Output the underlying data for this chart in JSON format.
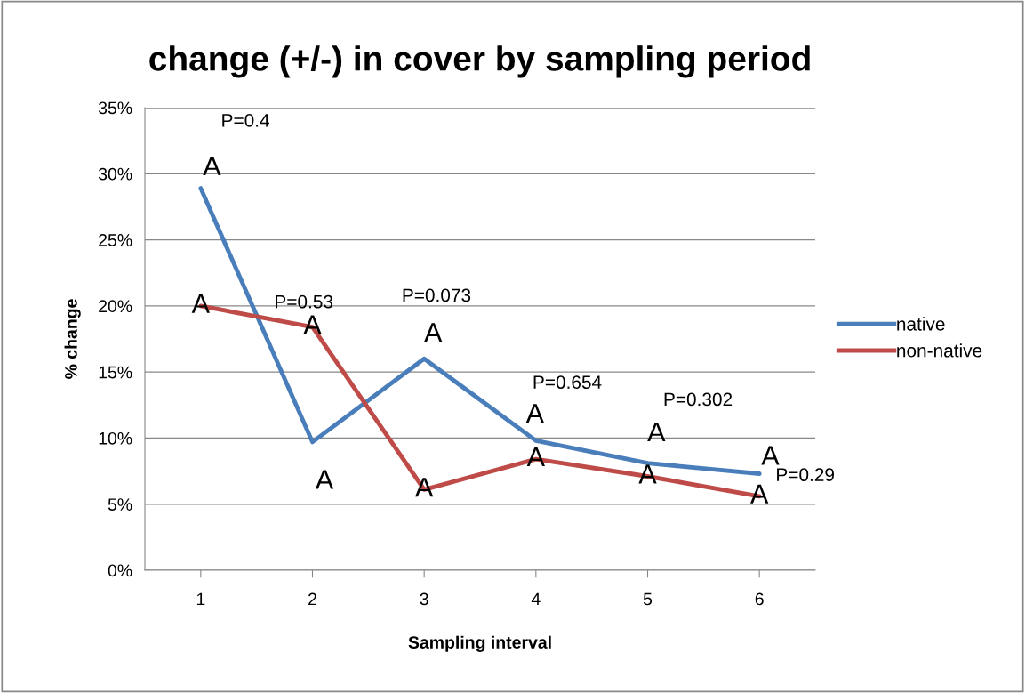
{
  "chart_data": {
    "type": "line",
    "title": "change (+/-) in cover by sampling period",
    "xlabel": "Sampling interval",
    "ylabel": "% change",
    "x": [
      1,
      2,
      3,
      4,
      5,
      6
    ],
    "xlim": [
      0.5,
      6.5
    ],
    "xticks": [
      1,
      2,
      3,
      4,
      5,
      6
    ],
    "ylim": [
      0,
      35
    ],
    "yticks": [
      {
        "value": 0,
        "label": "0%"
      },
      {
        "value": 5,
        "label": "5%"
      },
      {
        "value": 10,
        "label": "10%"
      },
      {
        "value": 15,
        "label": "15%"
      },
      {
        "value": 20,
        "label": "20%"
      },
      {
        "value": 25,
        "label": "25%"
      },
      {
        "value": 30,
        "label": "30%"
      },
      {
        "value": 35,
        "label": "35%"
      }
    ],
    "grid": "y",
    "legend": "right",
    "marker": "none",
    "line_style": "solid",
    "series": [
      {
        "name": "native",
        "color": "#4a7ebb",
        "values": [
          28.9,
          9.7,
          16.0,
          9.8,
          8.1,
          7.3
        ]
      },
      {
        "name": "non-native",
        "color": "#be4b48",
        "values": [
          20.0,
          18.4,
          6.1,
          8.4,
          7.1,
          5.6
        ]
      }
    ],
    "annotations": [
      "P=0.4",
      "A",
      {
        "text": "A",
        "x": 1,
        "y": 20.0
      },
      "P=0.53",
      {
        "text": "A",
        "x": 2,
        "y": 18.4
      },
      "A",
      "P=0.073",
      "A",
      {
        "text": "A",
        "x": 3,
        "y": 6.1
      },
      "P=0.654",
      "A",
      {
        "text": "A",
        "x": 4,
        "y": 8.4
      },
      "P=0.302",
      "A",
      {
        "text": "A",
        "x": 5,
        "y": 7.1
      },
      "A",
      "P=0.29",
      {
        "text": "A",
        "x": 6,
        "y": 5.6
      }
    ]
  }
}
